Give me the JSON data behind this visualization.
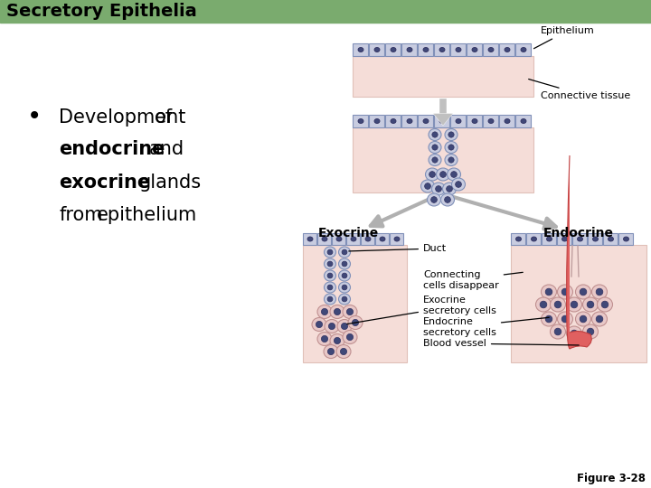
{
  "title": "Secretory Epithelia",
  "title_bg": "#7aab6e",
  "title_text_color": "#000000",
  "bg_color": "#ffffff",
  "bullet_lines": [
    [
      "Development of",
      []
    ],
    [
      "endocrine and",
      [
        "endocrine"
      ]
    ],
    [
      "exocrine glands",
      [
        "exocrine"
      ]
    ],
    [
      "from epithelium",
      []
    ]
  ],
  "label_epithelium": "Epithelium",
  "label_connective": "Connective tissue",
  "label_exocrine": "Exocrine",
  "label_endocrine": "Endocrine",
  "label_duct": "Duct",
  "label_connecting": "Connecting\ncells disappear",
  "label_exocrine_cells": "Exocrine\nsecretory cells",
  "label_endocrine_cells": "Endocrine\nsecretory cells",
  "label_blood_vessel": "Blood vessel",
  "figure_label": "Figure 3-28",
  "cell_color": "#c8cce0",
  "cell_outline": "#8090b8",
  "conn_color": "#f5ddd8",
  "conn_outline": "#e0c0b8",
  "nucleus_color": "#404878",
  "nucleus_outline": "#303060",
  "arrow_color": "#aaaaaa",
  "exo_cell_color": "#e8c8c8",
  "exo_cell_outline": "#c09090",
  "blood_vessel_color": "#e06060"
}
